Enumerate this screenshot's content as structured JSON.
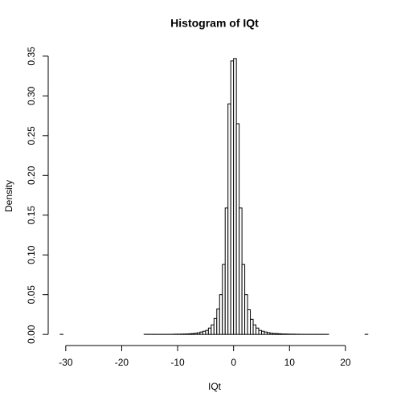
{
  "chart_data": {
    "type": "histogram",
    "title": "Histogram of IQt",
    "x_label": "IQt",
    "y_label": "Density",
    "bins": [
      -31,
      -30.5,
      -30,
      -29.5,
      -29,
      -28.5,
      -28,
      -27.5,
      -27,
      -26.5,
      -26,
      -25.5,
      -25,
      -24.5,
      -24,
      -23.5,
      -23,
      -22.5,
      -22,
      -21.5,
      -21,
      -20.5,
      -20,
      -19.5,
      -19,
      -18.5,
      -18,
      -17.5,
      -17,
      -16.5,
      -16,
      -15.5,
      -15,
      -14.5,
      -14,
      -13.5,
      -13,
      -12.5,
      -12,
      -11.5,
      -11,
      -10.5,
      -10,
      -9.5,
      -9,
      -8.5,
      -8,
      -7.5,
      -7,
      -6.5,
      -6,
      -5.5,
      -5,
      -4.5,
      -4,
      -3.5,
      -3,
      -2.5,
      -2,
      -1.5,
      -1,
      -0.5,
      0,
      0.5,
      1,
      1.5,
      2,
      2.5,
      3,
      3.5,
      4,
      4.5,
      5,
      5.5,
      6,
      6.5,
      7,
      7.5,
      8,
      8.5,
      9,
      9.5,
      10,
      10.5,
      11,
      11.5,
      12,
      12.5,
      13,
      13.5,
      14,
      14.5,
      15,
      15.5,
      16,
      16.5,
      17,
      17.5,
      18,
      18.5,
      19,
      19.5,
      20,
      20.5,
      21,
      21.5,
      22,
      22.5,
      23,
      23.5,
      24
    ],
    "values": [
      0.0001,
      0,
      0,
      0,
      0,
      0,
      0,
      0,
      0,
      0,
      0,
      0,
      0,
      0,
      0,
      0,
      0,
      0,
      0,
      0,
      0,
      0,
      0,
      0,
      0,
      0,
      0,
      0,
      0,
      0,
      0.0001,
      0.0001,
      0.0001,
      0.0001,
      0.0001,
      0.0001,
      0.0001,
      0.0001,
      0.0001,
      0.0001,
      0.0002,
      0.0003,
      0.0003,
      0.0004,
      0.0005,
      0.0006,
      0.0008,
      0.001,
      0.0015,
      0.002,
      0.003,
      0.004,
      0.005,
      0.008,
      0.012,
      0.02,
      0.032,
      0.05,
      0.088,
      0.159,
      0.29,
      0.344,
      0.347,
      0.265,
      0.159,
      0.088,
      0.05,
      0.031,
      0.019,
      0.012,
      0.008,
      0.005,
      0.004,
      0.003,
      0.0022,
      0.0015,
      0.0012,
      0.001,
      0.0008,
      0.0006,
      0.0005,
      0.0004,
      0.0003,
      0.0003,
      0.0002,
      0.0002,
      0.0001,
      0.0001,
      0.0001,
      0.0001,
      0.0001,
      0.0001,
      0.0001,
      0.0001,
      0.0001,
      0.0001,
      0,
      0,
      0,
      0,
      0,
      0,
      0,
      0,
      0,
      0,
      0,
      0,
      0,
      0.0001
    ],
    "color": "#ffffff",
    "edge_color": "#000000",
    "xlim": [
      -31.7,
      24.9
    ],
    "ylim": [
      -0.014,
      0.361
    ],
    "xticks": [
      -30,
      -20,
      -10,
      0,
      10,
      20
    ],
    "yticks": [
      {
        "value": 0,
        "label": "0.00"
      },
      0.05,
      {
        "value": 0.1,
        "label": "0.10"
      },
      0.15,
      {
        "value": 0.2,
        "label": "0.20"
      },
      0.25,
      {
        "value": 0.3,
        "label": "0.30"
      },
      0.35
    ]
  }
}
